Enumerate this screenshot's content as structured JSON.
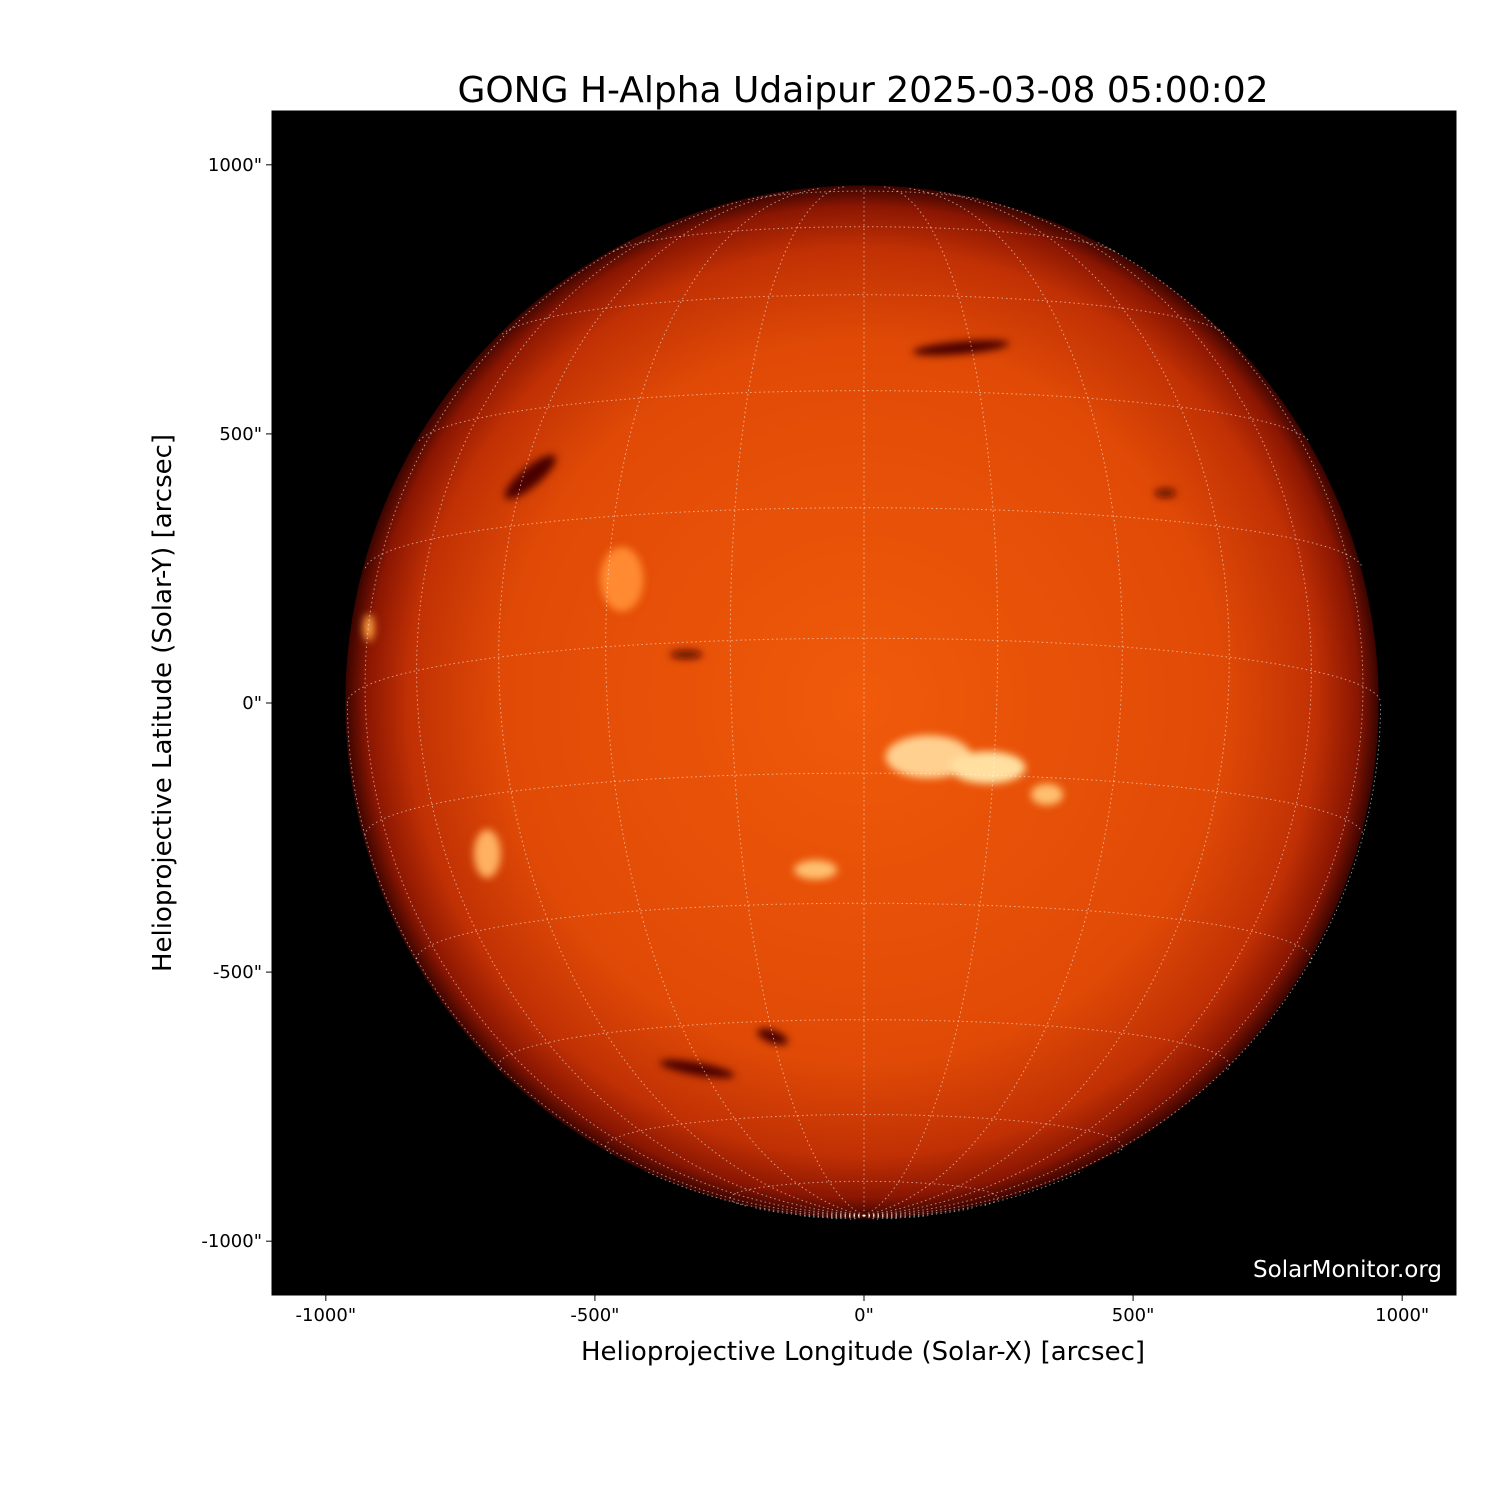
{
  "chart_data": {
    "type": "heatmap",
    "title": "GONG H-Alpha Udaipur 2025-03-08 05:00:02",
    "xlabel": "Helioprojective Longitude (Solar-X) [arcsec]",
    "ylabel": "Helioprojective Latitude (Solar-Y) [arcsec]",
    "xlim": [
      -1100,
      1100
    ],
    "ylim": [
      -1100,
      1100
    ],
    "xticks": [
      -1000,
      -500,
      0,
      500,
      1000
    ],
    "yticks": [
      -1000,
      -500,
      0,
      500,
      1000
    ],
    "xtick_labels": [
      "-1000\"",
      "-500\"",
      "0\"",
      "500\"",
      "1000\""
    ],
    "ytick_labels": [
      "-1000\"",
      "-500\"",
      "0\"",
      "500\"",
      "1000\""
    ],
    "solar_radius_arcsec": 960,
    "colormap": "GONG H-alpha red",
    "colors": {
      "background": "#000000",
      "disk_center": "#f05a0a",
      "disk_limb": "#5a0800",
      "grid": "#ffffff"
    },
    "grid": true,
    "watermark": "SolarMonitor.org"
  }
}
